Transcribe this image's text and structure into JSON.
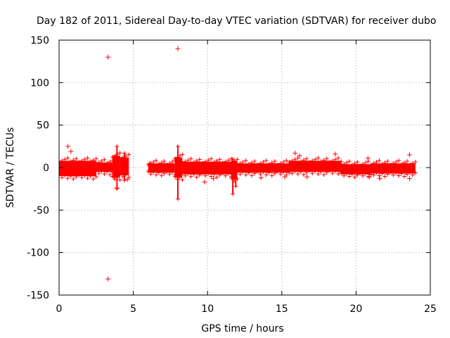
{
  "chart_data": {
    "type": "scatter",
    "title": "Day 182 of 2011, Sidereal Day-to-day VTEC variation (SDTVAR) for receiver dubo",
    "xlabel": "GPS time / hours",
    "ylabel": "SDTVAR / TECUs",
    "xlim": [
      0,
      25
    ],
    "ylim": [
      -150,
      150
    ],
    "xticks": [
      "0",
      "5",
      "10",
      "15",
      "20",
      "25"
    ],
    "yticks": [
      "150",
      "100",
      "50",
      "0",
      "-50",
      "-100",
      "-150"
    ],
    "grid": true,
    "marker": "+",
    "series_color": "#ff0000",
    "dense_bands": [
      {
        "x_start": 0.0,
        "x_end": 2.5,
        "low": -10,
        "high": 8
      },
      {
        "x_start": 2.5,
        "x_end": 3.6,
        "low": -5,
        "high": 6
      },
      {
        "x_start": 3.6,
        "x_end": 4.1,
        "low": -12,
        "high": 14
      },
      {
        "x_start": 4.1,
        "x_end": 4.7,
        "low": -9,
        "high": 12
      },
      {
        "x_start": 6.0,
        "x_end": 7.8,
        "low": -6,
        "high": 5
      },
      {
        "x_start": 7.8,
        "x_end": 8.3,
        "low": -12,
        "high": 12
      },
      {
        "x_start": 8.3,
        "x_end": 11.6,
        "low": -8,
        "high": 7
      },
      {
        "x_start": 11.6,
        "x_end": 12.0,
        "low": -14,
        "high": 8
      },
      {
        "x_start": 12.0,
        "x_end": 15.5,
        "low": -6,
        "high": 5
      },
      {
        "x_start": 15.5,
        "x_end": 19.0,
        "low": -5,
        "high": 8
      },
      {
        "x_start": 19.0,
        "x_end": 21.0,
        "low": -8,
        "high": 4
      },
      {
        "x_start": 21.0,
        "x_end": 24.0,
        "low": -7,
        "high": 5
      }
    ],
    "spike_lines": [
      {
        "x": 3.9,
        "low": -25,
        "high": 25
      },
      {
        "x": 4.4,
        "low": -15,
        "high": 17
      },
      {
        "x": 8.0,
        "low": -37,
        "high": 25
      },
      {
        "x": 11.7,
        "low": -31,
        "high": 10
      },
      {
        "x": 11.9,
        "low": -22,
        "high": 5
      }
    ],
    "points": [
      {
        "x": 3.3,
        "y": 130
      },
      {
        "x": 8.0,
        "y": 140
      },
      {
        "x": 3.3,
        "y": -131
      },
      {
        "x": 0.6,
        "y": 25
      },
      {
        "x": 0.8,
        "y": 19
      },
      {
        "x": 3.7,
        "y": -11
      },
      {
        "x": 3.9,
        "y": -24
      },
      {
        "x": 4.6,
        "y": -14
      },
      {
        "x": 6.1,
        "y": 5
      },
      {
        "x": 9.8,
        "y": -17
      },
      {
        "x": 10.4,
        "y": -13
      },
      {
        "x": 13.6,
        "y": -12
      },
      {
        "x": 15.2,
        "y": -11
      },
      {
        "x": 15.9,
        "y": 17
      },
      {
        "x": 16.2,
        "y": 14
      },
      {
        "x": 16.7,
        "y": -11
      },
      {
        "x": 18.6,
        "y": 16
      },
      {
        "x": 20.8,
        "y": 11
      },
      {
        "x": 20.9,
        "y": -11
      },
      {
        "x": 21.6,
        "y": -13
      },
      {
        "x": 23.6,
        "y": 15
      },
      {
        "x": 23.6,
        "y": -13
      }
    ]
  }
}
